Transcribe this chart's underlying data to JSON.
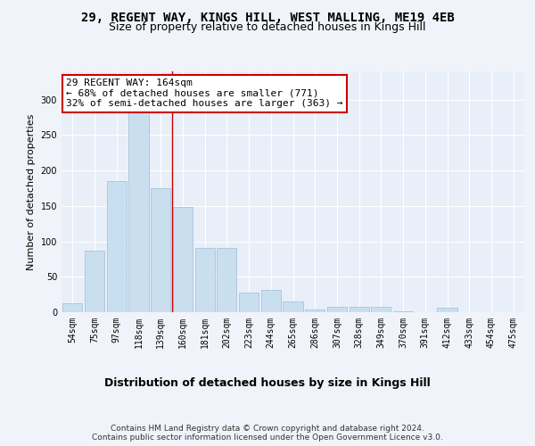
{
  "title1": "29, REGENT WAY, KINGS HILL, WEST MALLING, ME19 4EB",
  "title2": "Size of property relative to detached houses in Kings Hill",
  "xlabel": "Distribution of detached houses by size in Kings Hill",
  "ylabel": "Number of detached properties",
  "categories": [
    "54sqm",
    "75sqm",
    "97sqm",
    "118sqm",
    "139sqm",
    "160sqm",
    "181sqm",
    "202sqm",
    "223sqm",
    "244sqm",
    "265sqm",
    "286sqm",
    "307sqm",
    "328sqm",
    "349sqm",
    "370sqm",
    "391sqm",
    "412sqm",
    "433sqm",
    "454sqm",
    "475sqm"
  ],
  "values": [
    13,
    87,
    185,
    289,
    175,
    148,
    91,
    91,
    28,
    31,
    15,
    4,
    7,
    7,
    7,
    1,
    0,
    6,
    0,
    0,
    0
  ],
  "bar_color": "#c9dff0",
  "bar_edge_color": "#9dbdd8",
  "vline_x": 4.5,
  "vline_color": "#cc0000",
  "annotation_text": "29 REGENT WAY: 164sqm\n← 68% of detached houses are smaller (771)\n32% of semi-detached houses are larger (363) →",
  "annotation_box_color": "#ffffff",
  "annotation_box_edge": "#cc0000",
  "bg_color": "#e8eff8",
  "grid_color": "#ffffff",
  "fig_bg_color": "#f0f4fa",
  "ylim": [
    0,
    340
  ],
  "yticks": [
    0,
    50,
    100,
    150,
    200,
    250,
    300
  ],
  "title1_fontsize": 10,
  "title2_fontsize": 9,
  "xlabel_fontsize": 9,
  "ylabel_fontsize": 8,
  "tick_fontsize": 7,
  "annotation_fontsize": 8,
  "footer_fontsize": 6.5,
  "footer": "Contains HM Land Registry data © Crown copyright and database right 2024.\nContains public sector information licensed under the Open Government Licence v3.0."
}
